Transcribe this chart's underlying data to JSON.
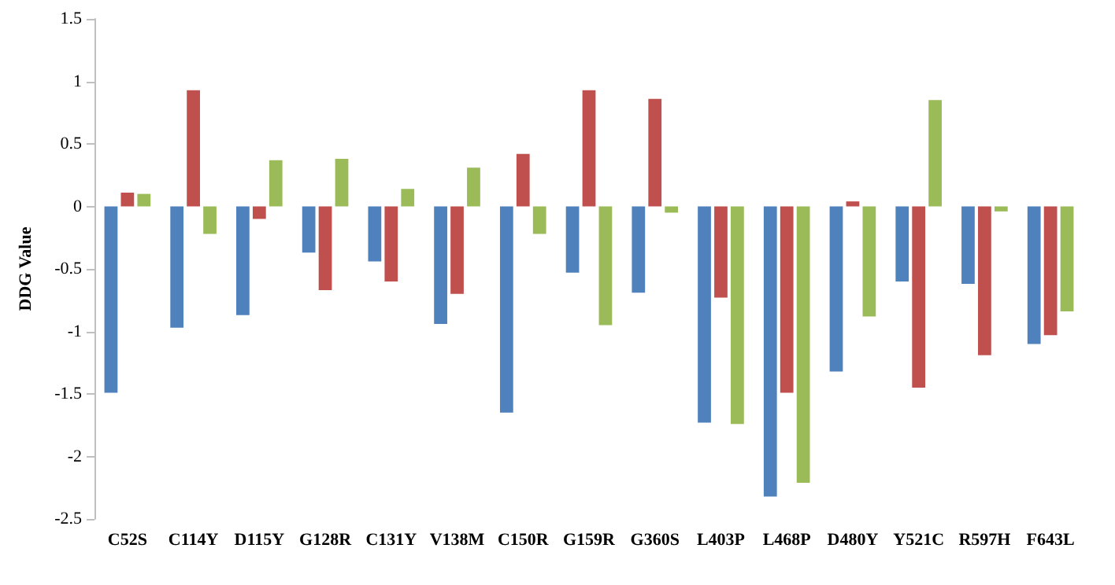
{
  "chart_data": {
    "type": "bar",
    "ylabel": "DDG Value",
    "categories": [
      "C52S",
      "C114Y",
      "D115Y",
      "G128R",
      "C131Y",
      "V138M",
      "C150R",
      "G159R",
      "G360S",
      "L403P",
      "L468P",
      "D480Y",
      "Y521C",
      "R597H",
      "F643L"
    ],
    "series": [
      {
        "color": "#4f81bd",
        "values": [
          -1.49,
          -0.97,
          -0.87,
          -0.37,
          -0.44,
          -0.94,
          -1.65,
          -0.53,
          -0.69,
          -1.73,
          -2.32,
          -1.32,
          -0.6,
          -0.62,
          -1.1
        ]
      },
      {
        "color": "#c0504d",
        "values": [
          0.11,
          0.93,
          -0.1,
          -0.67,
          -0.6,
          -0.7,
          0.42,
          0.93,
          0.86,
          -0.73,
          -1.49,
          0.04,
          -1.45,
          -1.19,
          -1.03
        ]
      },
      {
        "color": "#9bbb59",
        "values": [
          0.1,
          -0.22,
          0.37,
          0.38,
          0.14,
          0.31,
          -0.22,
          -0.95,
          -0.05,
          -1.74,
          -2.21,
          -0.88,
          0.85,
          -0.04,
          -0.84
        ]
      }
    ],
    "ylim": [
      -2.5,
      1.5
    ],
    "yticks": [
      -2.5,
      -2,
      -1.5,
      -1,
      -0.5,
      0,
      0.5,
      1,
      1.5
    ],
    "grid": false
  }
}
